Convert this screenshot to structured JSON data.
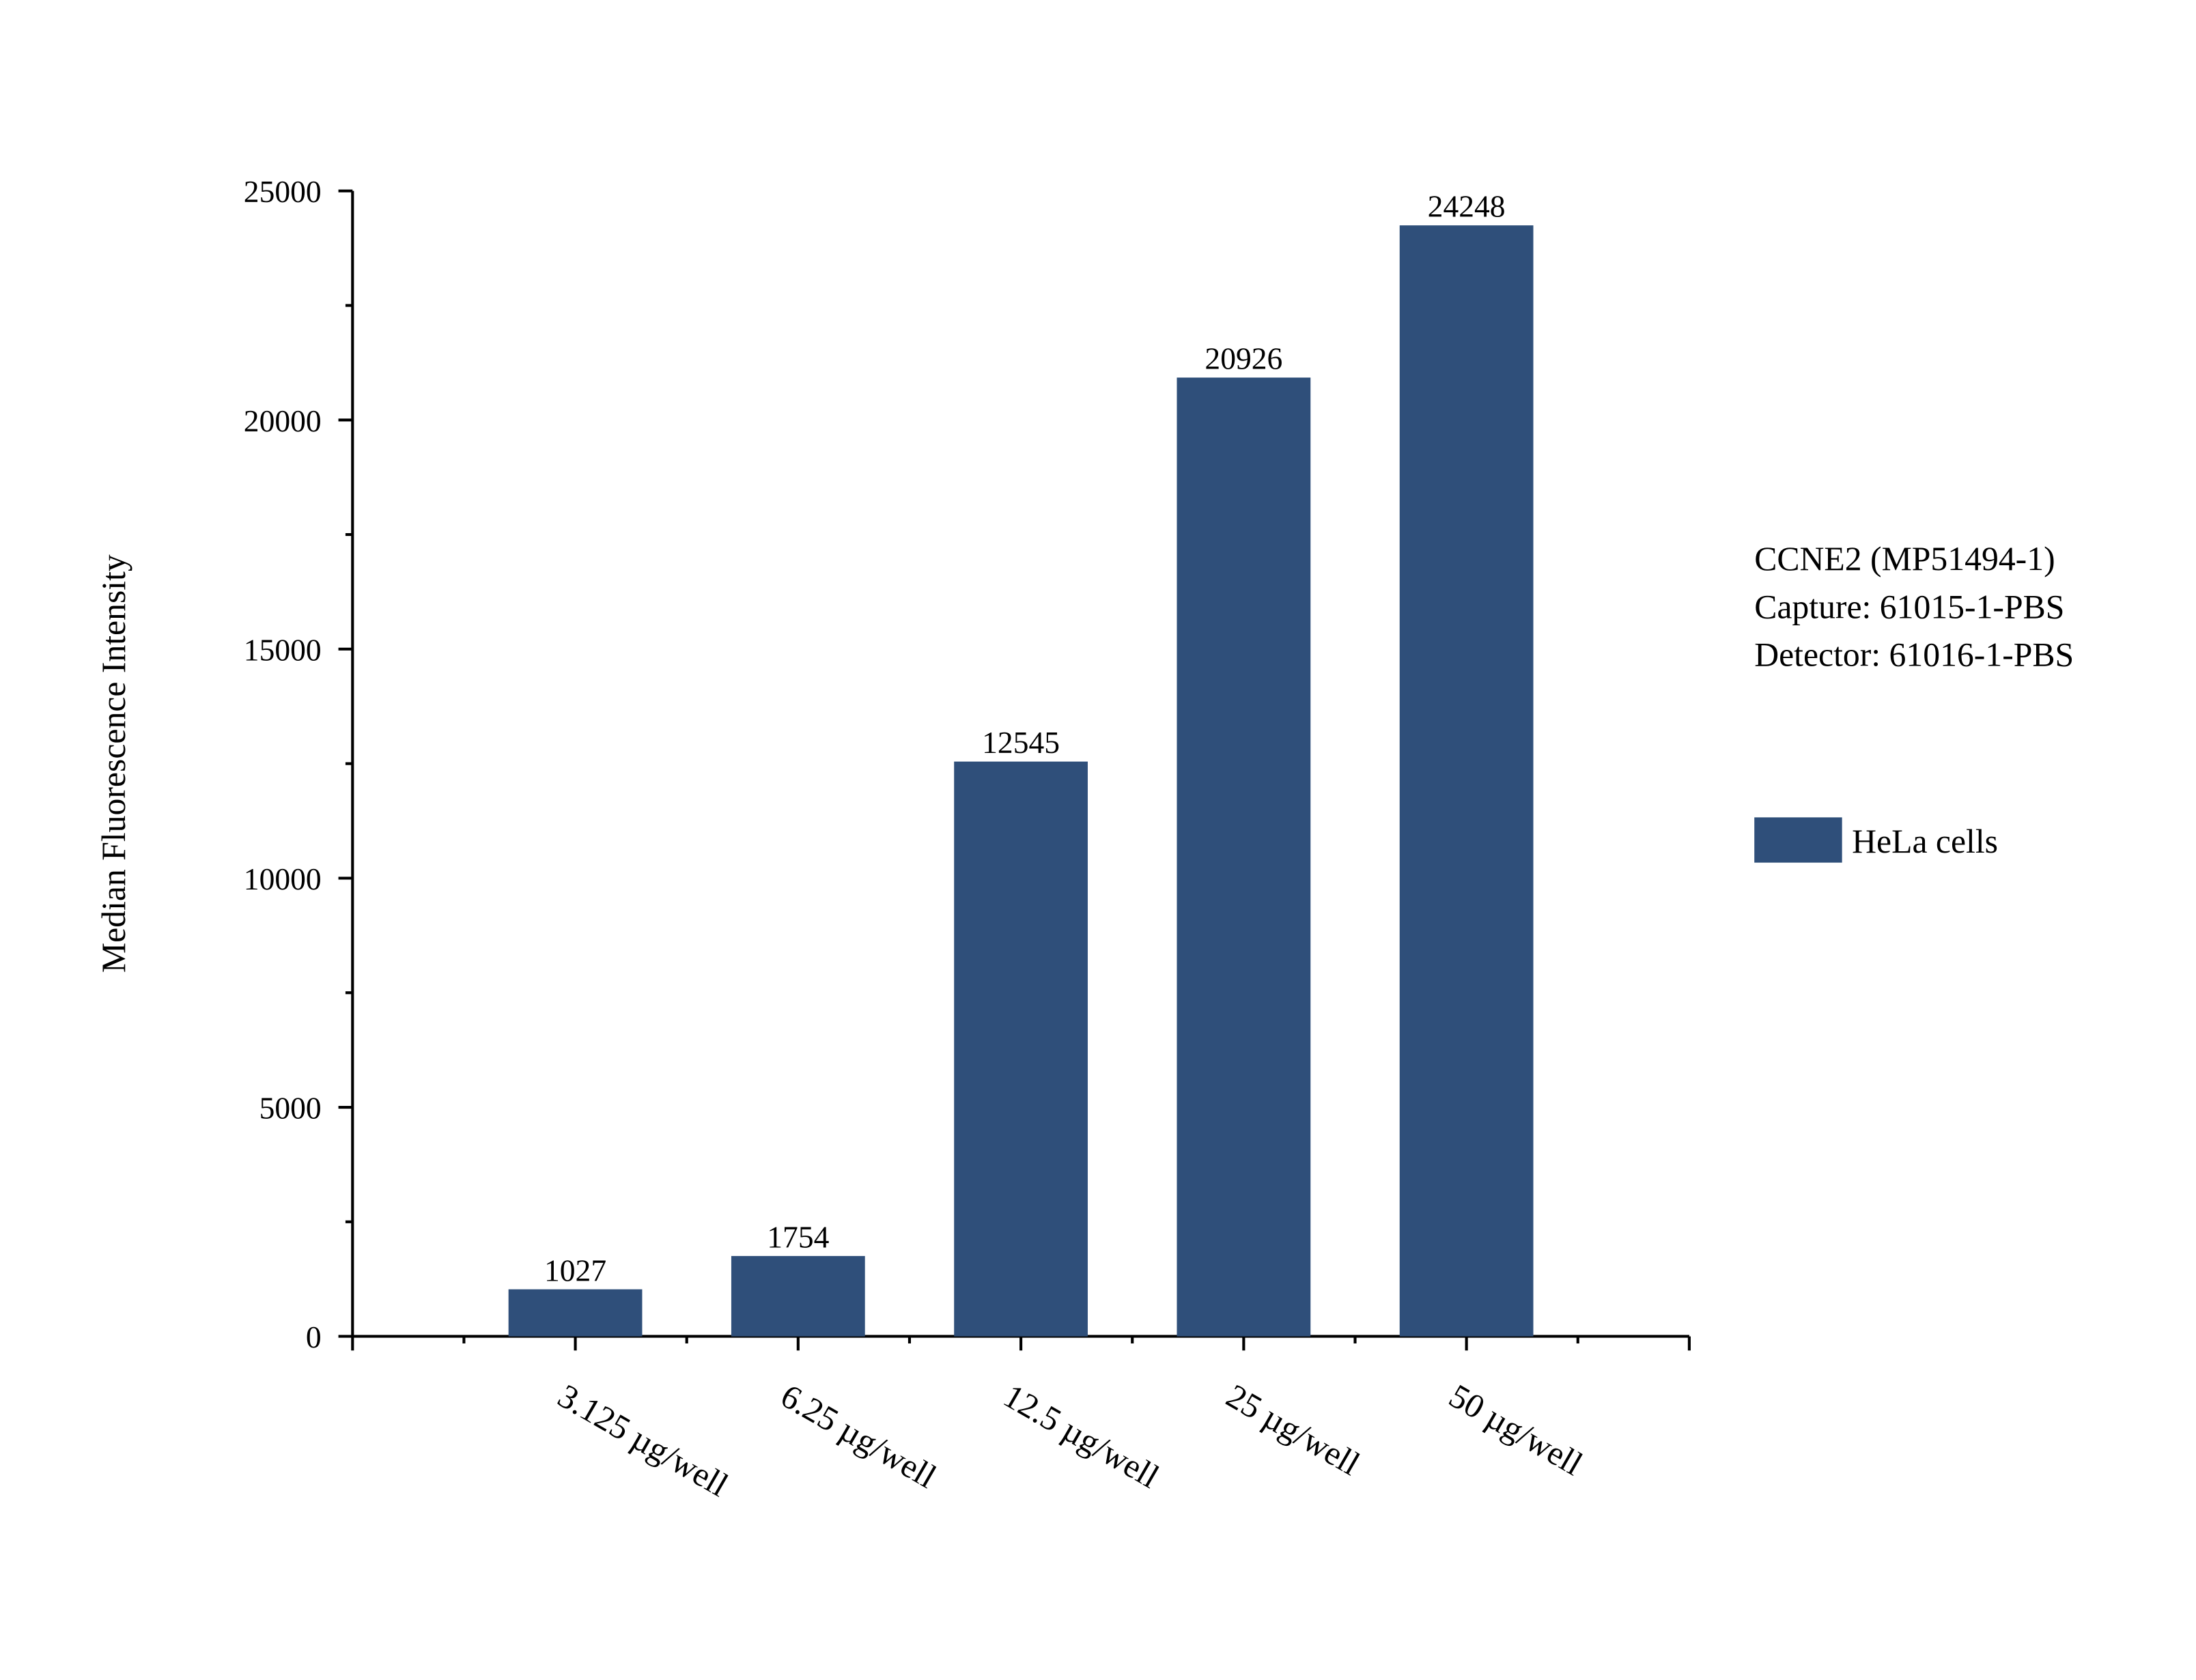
{
  "chart_data": {
    "type": "bar",
    "y_label": "Median Fluorescence Intensity",
    "categories": [
      "3.125 µg/well",
      "6.25 µg/well",
      "12.5 µg/well",
      "25 µg/well",
      "50 µg/well"
    ],
    "series": [
      {
        "name": "HeLa cells",
        "color": "#2f4f7a",
        "values": [
          1027,
          1754,
          12545,
          20926,
          24248
        ]
      }
    ],
    "ylim": [
      0,
      25000
    ],
    "yticks": [
      0,
      5000,
      10000,
      15000,
      20000,
      25000
    ],
    "annotations": [
      "CCNE2 (MP51494-1)",
      "Capture: 61015-1-PBS",
      "Detector: 61016-1-PBS"
    ]
  }
}
